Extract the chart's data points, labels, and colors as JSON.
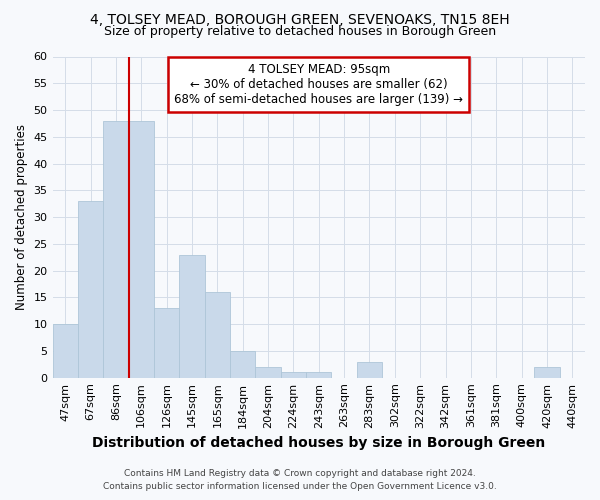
{
  "title": "4, TOLSEY MEAD, BOROUGH GREEN, SEVENOAKS, TN15 8EH",
  "subtitle": "Size of property relative to detached houses in Borough Green",
  "xlabel": "Distribution of detached houses by size in Borough Green",
  "ylabel": "Number of detached properties",
  "categories": [
    "47sqm",
    "67sqm",
    "86sqm",
    "106sqm",
    "126sqm",
    "145sqm",
    "165sqm",
    "184sqm",
    "204sqm",
    "224sqm",
    "243sqm",
    "263sqm",
    "283sqm",
    "302sqm",
    "322sqm",
    "342sqm",
    "361sqm",
    "381sqm",
    "400sqm",
    "420sqm",
    "440sqm"
  ],
  "values": [
    10,
    33,
    48,
    48,
    13,
    23,
    16,
    5,
    2,
    1,
    1,
    0,
    3,
    0,
    0,
    0,
    0,
    0,
    0,
    2,
    0
  ],
  "bar_color": "#c9d9ea",
  "bar_edge_color": "#aec6d8",
  "grid_color": "#d4dde8",
  "vline_x_index": 2.5,
  "annotation_text": "4 TOLSEY MEAD: 95sqm\n← 30% of detached houses are smaller (62)\n68% of semi-detached houses are larger (139) →",
  "annotation_box_color": "#ffffff",
  "annotation_box_edge_color": "#cc0000",
  "vline_color": "#cc0000",
  "ylim": [
    0,
    60
  ],
  "yticks": [
    0,
    5,
    10,
    15,
    20,
    25,
    30,
    35,
    40,
    45,
    50,
    55,
    60
  ],
  "footer_line1": "Contains HM Land Registry data © Crown copyright and database right 2024.",
  "footer_line2": "Contains public sector information licensed under the Open Government Licence v3.0.",
  "background_color": "#f7f9fc",
  "title_fontsize": 10,
  "subtitle_fontsize": 9,
  "xlabel_fontsize": 10,
  "ylabel_fontsize": 8.5,
  "tick_fontsize": 8,
  "annotation_fontsize": 8.5,
  "footer_fontsize": 6.5
}
